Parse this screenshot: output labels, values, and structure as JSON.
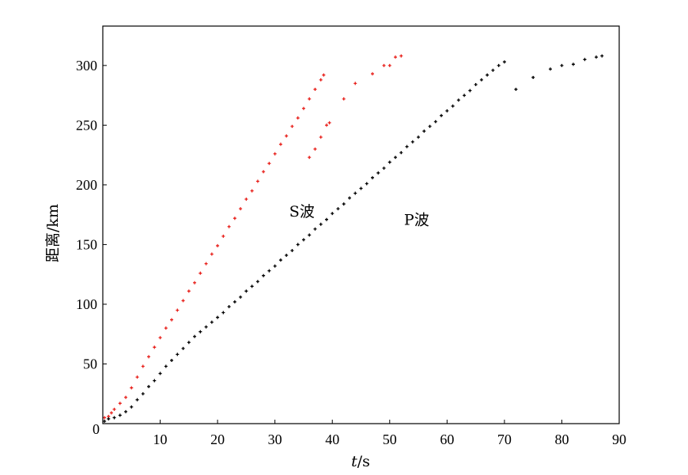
{
  "chart_data": {
    "type": "scatter",
    "title": "",
    "xlabel": {
      "italic": "t",
      "rest": "/s"
    },
    "ylabel": "距离/km",
    "xlim": [
      0,
      90
    ],
    "ylim": [
      0,
      333
    ],
    "xticks": [
      "0",
      "10",
      "20",
      "30",
      "40",
      "50",
      "60",
      "70",
      "80",
      "90"
    ],
    "yticks": [
      "50",
      "100",
      "150",
      "200",
      "250",
      "300"
    ],
    "grid": false,
    "legend": "none",
    "annotations": [
      {
        "text": "S波",
        "x": 32.5,
        "y": 178
      },
      {
        "text": "P波",
        "x": 52.5,
        "y": 171
      }
    ],
    "series": [
      {
        "color": "#e8201b",
        "marker": "plus",
        "points": [
          [
            0.3,
            5
          ],
          [
            1,
            6
          ],
          [
            1.5,
            9
          ],
          [
            2,
            12
          ],
          [
            3,
            17
          ],
          [
            4,
            22
          ],
          [
            5,
            30
          ],
          [
            6,
            39
          ],
          [
            7,
            48
          ],
          [
            8,
            56
          ],
          [
            9,
            64
          ],
          [
            10,
            72
          ],
          [
            11,
            80
          ],
          [
            12,
            87
          ],
          [
            13,
            95
          ],
          [
            14,
            103
          ],
          [
            15,
            111
          ],
          [
            16,
            118
          ],
          [
            17,
            126
          ],
          [
            18,
            134
          ],
          [
            19,
            142
          ],
          [
            20,
            149
          ],
          [
            21,
            157
          ],
          [
            22,
            165
          ],
          [
            23,
            172
          ],
          [
            24,
            180
          ],
          [
            25,
            188
          ],
          [
            26,
            195
          ],
          [
            27,
            203
          ],
          [
            28,
            211
          ],
          [
            29,
            218
          ],
          [
            30,
            226
          ],
          [
            31,
            234
          ],
          [
            32,
            241
          ],
          [
            33,
            249
          ],
          [
            34,
            256
          ],
          [
            35,
            264
          ],
          [
            36,
            272
          ],
          [
            37,
            280
          ],
          [
            38,
            288
          ],
          [
            38.5,
            292
          ],
          [
            39,
            250
          ],
          [
            37,
            230
          ],
          [
            36,
            223
          ],
          [
            38,
            240
          ],
          [
            39.5,
            252
          ],
          [
            42,
            272
          ],
          [
            44,
            285
          ],
          [
            47,
            293
          ],
          [
            49,
            300
          ],
          [
            50,
            300
          ],
          [
            51,
            307
          ],
          [
            52,
            308
          ]
        ]
      },
      {
        "color": "#000000",
        "marker": "plus",
        "points": [
          [
            0.3,
            2
          ],
          [
            1,
            4
          ],
          [
            2,
            5
          ],
          [
            3,
            7
          ],
          [
            4,
            10
          ],
          [
            5,
            14
          ],
          [
            6,
            20
          ],
          [
            7,
            25
          ],
          [
            8,
            31
          ],
          [
            9,
            36
          ],
          [
            10,
            42
          ],
          [
            11,
            48
          ],
          [
            12,
            53
          ],
          [
            13,
            58
          ],
          [
            14,
            63
          ],
          [
            15,
            68
          ],
          [
            16,
            73
          ],
          [
            17,
            77
          ],
          [
            18,
            81
          ],
          [
            19,
            85
          ],
          [
            20,
            89
          ],
          [
            21,
            93
          ],
          [
            22,
            98
          ],
          [
            23,
            102
          ],
          [
            24,
            106
          ],
          [
            25,
            111
          ],
          [
            26,
            115
          ],
          [
            27,
            119
          ],
          [
            28,
            124
          ],
          [
            29,
            128
          ],
          [
            30,
            132
          ],
          [
            31,
            137
          ],
          [
            32,
            141
          ],
          [
            33,
            145
          ],
          [
            34,
            150
          ],
          [
            35,
            154
          ],
          [
            36,
            158
          ],
          [
            37,
            163
          ],
          [
            38,
            167
          ],
          [
            39,
            171
          ],
          [
            40,
            176
          ],
          [
            41,
            180
          ],
          [
            42,
            184
          ],
          [
            43,
            189
          ],
          [
            44,
            193
          ],
          [
            45,
            197
          ],
          [
            46,
            201
          ],
          [
            47,
            206
          ],
          [
            48,
            210
          ],
          [
            49,
            214
          ],
          [
            50,
            219
          ],
          [
            51,
            223
          ],
          [
            52,
            227
          ],
          [
            53,
            232
          ],
          [
            54,
            236
          ],
          [
            55,
            240
          ],
          [
            56,
            245
          ],
          [
            57,
            249
          ],
          [
            58,
            253
          ],
          [
            59,
            258
          ],
          [
            60,
            262
          ],
          [
            61,
            266
          ],
          [
            62,
            271
          ],
          [
            63,
            275
          ],
          [
            64,
            279
          ],
          [
            65,
            284
          ],
          [
            66,
            288
          ],
          [
            67,
            292
          ],
          [
            68,
            296
          ],
          [
            69,
            300
          ],
          [
            70,
            303
          ],
          [
            72,
            280
          ],
          [
            75,
            290
          ],
          [
            78,
            297
          ],
          [
            80,
            300
          ],
          [
            82,
            301
          ],
          [
            84,
            305
          ],
          [
            86,
            307
          ],
          [
            87,
            308
          ]
        ]
      }
    ]
  }
}
